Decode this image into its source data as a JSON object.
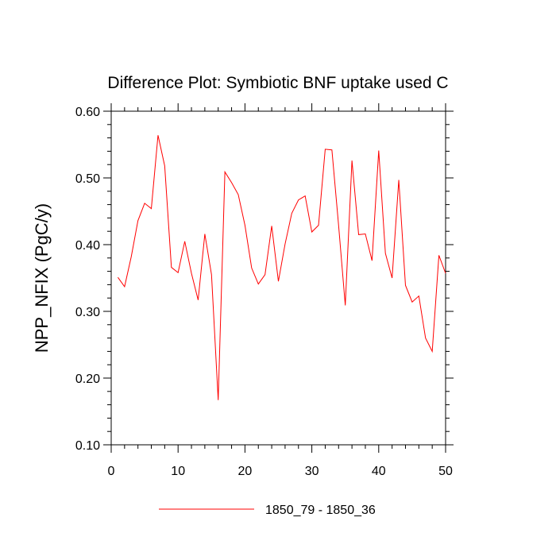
{
  "chart_data": {
    "type": "line",
    "title": "Difference Plot: Symbiotic BNF uptake used C",
    "xlabel": "",
    "ylabel": "NPP_NFIX  (PgC/y)",
    "xlim": [
      0,
      50
    ],
    "ylim": [
      0.1,
      0.6
    ],
    "x_ticks": [
      0,
      10,
      20,
      30,
      40,
      50
    ],
    "x_tick_labels": [
      "0",
      "10",
      "20",
      "30",
      "40",
      "50"
    ],
    "y_ticks": [
      0.1,
      0.2,
      0.3,
      0.4,
      0.5,
      0.6
    ],
    "y_tick_labels": [
      "0.10",
      "0.20",
      "0.30",
      "0.40",
      "0.50",
      "0.60"
    ],
    "grid": false,
    "legend_position": "bottom-center",
    "series": [
      {
        "name": "1850_79 - 1850_36",
        "color": "#ff0000",
        "x": [
          1,
          2,
          3,
          4,
          5,
          6,
          7,
          8,
          9,
          10,
          11,
          12,
          13,
          14,
          15,
          16,
          17,
          18,
          19,
          20,
          21,
          22,
          23,
          24,
          25,
          26,
          27,
          28,
          29,
          30,
          31,
          32,
          33,
          34,
          35,
          36,
          37,
          38,
          39,
          40,
          41,
          42,
          43,
          44,
          45,
          46,
          47,
          48,
          49,
          50
        ],
        "values": [
          0.351,
          0.337,
          0.382,
          0.436,
          0.462,
          0.454,
          0.564,
          0.518,
          0.366,
          0.358,
          0.405,
          0.357,
          0.317,
          0.416,
          0.355,
          0.167,
          0.509,
          0.493,
          0.475,
          0.429,
          0.365,
          0.341,
          0.355,
          0.428,
          0.345,
          0.401,
          0.447,
          0.467,
          0.473,
          0.419,
          0.429,
          0.543,
          0.542,
          0.429,
          0.309,
          0.526,
          0.415,
          0.416,
          0.376,
          0.541,
          0.387,
          0.35,
          0.497,
          0.339,
          0.314,
          0.323,
          0.26,
          0.24,
          0.384,
          0.357
        ]
      }
    ]
  }
}
